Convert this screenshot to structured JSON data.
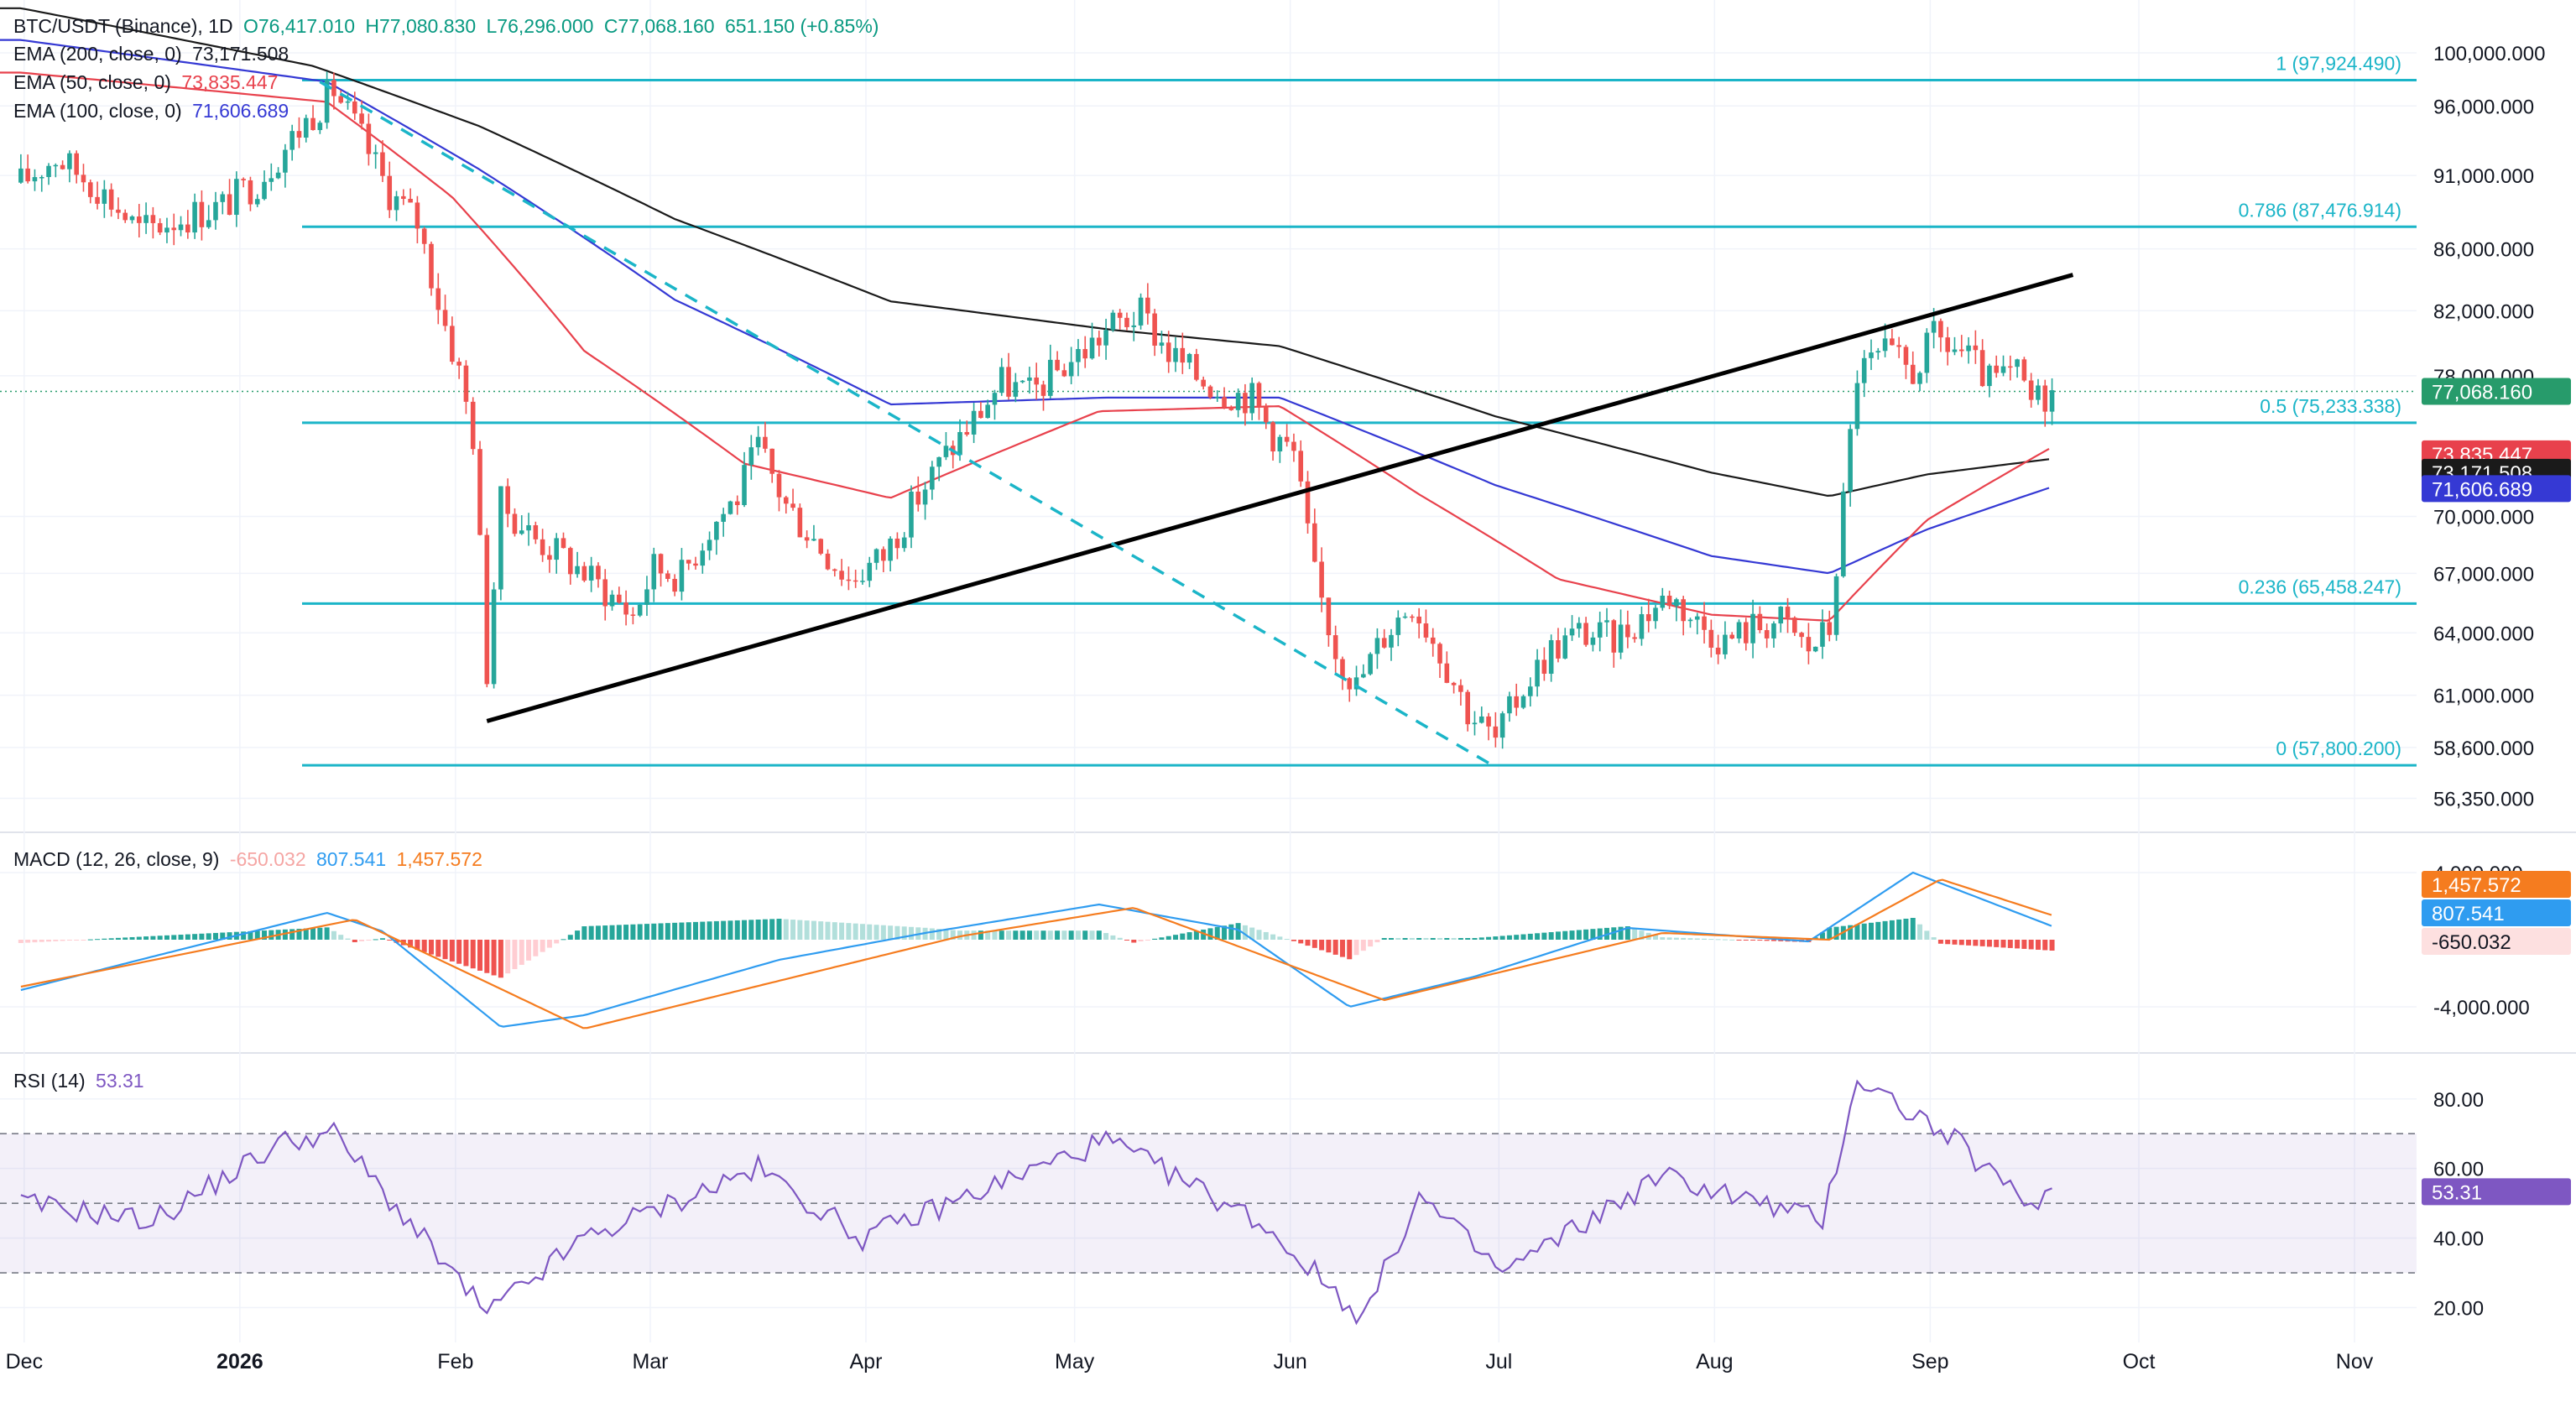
{
  "header": {
    "symbol": "BTC/USDT (Binance), 1D",
    "open": "O76,417.010",
    "high": "H77,080.830",
    "low": "L76,296.000",
    "close": "C77,068.160",
    "change": "651.150 (+0.85%)",
    "ema200_label": "EMA (200, close, 0)",
    "ema200_value": "73,171.508",
    "ema50_label": "EMA (50, close, 0)",
    "ema50_value": "73,835.447",
    "ema100_label": "EMA (100, close, 0)",
    "ema100_value": "71,606.689",
    "macd_label": "MACD (12, 26, close, 9)",
    "macd_hist": "-650.032",
    "macd_line": "807.541",
    "macd_signal": "1,457.572",
    "rsi_label": "RSI (14)",
    "rsi_value": "53.31"
  },
  "colors": {
    "up": "#26a69a",
    "down": "#ef5350",
    "ema200": "#1a1a1a",
    "ema50": "#e8414c",
    "ema100": "#3539d4",
    "fib": "#1bb5c8",
    "macd": "#2f9cf0",
    "signal": "#f57c1f",
    "rsi": "#7e57c2",
    "last_price_bg": "#279b6b"
  },
  "chart_data": [
    {
      "type": "candlestick",
      "title": "BTC/USDT (Binance), 1D",
      "x_ticks": [
        "Dec",
        "2026",
        "Feb",
        "Mar",
        "Apr",
        "May",
        "Jun",
        "Jul",
        "Aug",
        "Sep",
        "Oct",
        "Nov"
      ],
      "y_ticks": [
        "100,000.000",
        "96,000.000",
        "91,000.000",
        "86,000.000",
        "82,000.000",
        "78,000.000",
        "70,000.000",
        "67,000.000",
        "64,000.000",
        "61,000.000",
        "58,600.000",
        "56,350.000"
      ],
      "y_scale": "log",
      "ylim": [
        55500,
        101500
      ],
      "last_price": 77068.16,
      "last_price_label": "77,068.160",
      "fib_levels": [
        {
          "ratio": "1",
          "price": 97924.49,
          "label": "1 (97,924.490)"
        },
        {
          "ratio": "0.786",
          "price": 87476.914,
          "label": "0.786 (87,476.914)"
        },
        {
          "ratio": "0.5",
          "price": 75233.338,
          "label": "0.5 (75,233.338)"
        },
        {
          "ratio": "0.236",
          "price": 65458.247,
          "label": "0.236 (65,458.247)"
        },
        {
          "ratio": "0",
          "price": 57800.2,
          "label": "0 (57,800.200)"
        }
      ],
      "ema_tags": [
        {
          "name": "EMA (50, close, 0)",
          "value": 73835.447,
          "label": "73,835.447"
        },
        {
          "name": "EMA (200, close, 0)",
          "value": 73171.508,
          "label": "73,171.508"
        },
        {
          "name": "EMA (100, close, 0)",
          "value": 71606.689,
          "label": "71,606.689"
        }
      ],
      "close_path": [
        {
          "date": "2025-12-01",
          "close": 90500
        },
        {
          "date": "2025-12-06",
          "close": 92300
        },
        {
          "date": "2025-12-12",
          "close": 90200
        },
        {
          "date": "2025-12-18",
          "close": 87200
        },
        {
          "date": "2025-12-24",
          "close": 88100
        },
        {
          "date": "2025-12-30",
          "close": 88900
        },
        {
          "date": "2026-01-04",
          "close": 90600
        },
        {
          "date": "2026-01-08",
          "close": 93000
        },
        {
          "date": "2026-01-12",
          "close": 95500
        },
        {
          "date": "2026-01-15",
          "close": 97200
        },
        {
          "date": "2026-01-19",
          "close": 93600
        },
        {
          "date": "2026-01-23",
          "close": 89800
        },
        {
          "date": "2026-01-27",
          "close": 87800
        },
        {
          "date": "2026-01-30",
          "close": 82600
        },
        {
          "date": "2026-02-02",
          "close": 78200
        },
        {
          "date": "2026-02-04",
          "close": 74500
        },
        {
          "date": "2026-02-06",
          "close": 62200
        },
        {
          "date": "2026-02-08",
          "close": 70700
        },
        {
          "date": "2026-02-13",
          "close": 68800
        },
        {
          "date": "2026-02-18",
          "close": 67600
        },
        {
          "date": "2026-02-23",
          "close": 66100
        },
        {
          "date": "2026-02-27",
          "close": 64900
        },
        {
          "date": "2026-03-02",
          "close": 67300
        },
        {
          "date": "2026-03-06",
          "close": 66900
        },
        {
          "date": "2026-03-10",
          "close": 69400
        },
        {
          "date": "2026-03-14",
          "close": 71100
        },
        {
          "date": "2026-03-17",
          "close": 73800
        },
        {
          "date": "2026-03-21",
          "close": 70600
        },
        {
          "date": "2026-03-26",
          "close": 68400
        },
        {
          "date": "2026-03-30",
          "close": 66700
        },
        {
          "date": "2026-04-04",
          "close": 67900
        },
        {
          "date": "2026-04-09",
          "close": 71100
        },
        {
          "date": "2026-04-13",
          "close": 73400
        },
        {
          "date": "2026-04-17",
          "close": 75400
        },
        {
          "date": "2026-04-21",
          "close": 77600
        },
        {
          "date": "2026-04-25",
          "close": 76900
        },
        {
          "date": "2026-04-29",
          "close": 78300
        },
        {
          "date": "2026-05-03",
          "close": 79600
        },
        {
          "date": "2026-05-07",
          "close": 81100
        },
        {
          "date": "2026-05-11",
          "close": 81800
        },
        {
          "date": "2026-05-15",
          "close": 79400
        },
        {
          "date": "2026-05-19",
          "close": 78000
        },
        {
          "date": "2026-05-23",
          "close": 77100
        },
        {
          "date": "2026-05-27",
          "close": 76700
        },
        {
          "date": "2026-05-30",
          "close": 74600
        },
        {
          "date": "2026-06-02",
          "close": 73400
        },
        {
          "date": "2026-06-05",
          "close": 66800
        },
        {
          "date": "2026-06-08",
          "close": 63200
        },
        {
          "date": "2026-06-11",
          "close": 61400
        },
        {
          "date": "2026-06-15",
          "close": 63900
        },
        {
          "date": "2026-06-19",
          "close": 65600
        },
        {
          "date": "2026-06-23",
          "close": 63100
        },
        {
          "date": "2026-06-27",
          "close": 60300
        },
        {
          "date": "2026-07-01",
          "close": 58900
        },
        {
          "date": "2026-07-05",
          "close": 61400
        },
        {
          "date": "2026-07-09",
          "close": 63200
        },
        {
          "date": "2026-07-13",
          "close": 64000
        },
        {
          "date": "2026-07-18",
          "close": 63700
        },
        {
          "date": "2026-07-22",
          "close": 64800
        },
        {
          "date": "2026-07-26",
          "close": 65900
        },
        {
          "date": "2026-07-30",
          "close": 64500
        },
        {
          "date": "2026-08-03",
          "close": 63600
        },
        {
          "date": "2026-08-07",
          "close": 64300
        },
        {
          "date": "2026-08-11",
          "close": 64600
        },
        {
          "date": "2026-08-15",
          "close": 63200
        },
        {
          "date": "2026-08-18",
          "close": 64200
        },
        {
          "date": "2026-08-20",
          "close": 70700
        },
        {
          "date": "2026-08-22",
          "close": 78200
        },
        {
          "date": "2026-08-26",
          "close": 79300
        },
        {
          "date": "2026-08-30",
          "close": 78200
        },
        {
          "date": "2026-09-02",
          "close": 80300
        },
        {
          "date": "2026-09-06",
          "close": 79400
        },
        {
          "date": "2026-09-10",
          "close": 77600
        },
        {
          "date": "2026-09-14",
          "close": 78100
        },
        {
          "date": "2026-09-16",
          "close": 76500
        },
        {
          "date": "2026-09-19",
          "close": 77068
        }
      ],
      "ema200": [
        {
          "date": "2025-12-01",
          "value": 103500
        },
        {
          "date": "2026-01-12",
          "value": 99000
        },
        {
          "date": "2026-02-05",
          "value": 94500
        },
        {
          "date": "2026-03-05",
          "value": 88000
        },
        {
          "date": "2026-04-05",
          "value": 82600
        },
        {
          "date": "2026-05-07",
          "value": 80800
        },
        {
          "date": "2026-05-31",
          "value": 79800
        },
        {
          "date": "2026-07-01",
          "value": 75600
        },
        {
          "date": "2026-08-01",
          "value": 72400
        },
        {
          "date": "2026-08-18",
          "value": 71100
        },
        {
          "date": "2026-09-01",
          "value": 72300
        },
        {
          "date": "2026-09-19",
          "value": 73171.508
        }
      ],
      "ema50": [
        {
          "date": "2025-12-01",
          "value": 98500
        },
        {
          "date": "2026-01-14",
          "value": 96300
        },
        {
          "date": "2026-02-01",
          "value": 89500
        },
        {
          "date": "2026-02-20",
          "value": 79500
        },
        {
          "date": "2026-03-15",
          "value": 72900
        },
        {
          "date": "2026-04-05",
          "value": 71000
        },
        {
          "date": "2026-05-05",
          "value": 75900
        },
        {
          "date": "2026-05-31",
          "value": 76200
        },
        {
          "date": "2026-06-20",
          "value": 71200
        },
        {
          "date": "2026-07-10",
          "value": 66700
        },
        {
          "date": "2026-08-01",
          "value": 64900
        },
        {
          "date": "2026-08-18",
          "value": 64600
        },
        {
          "date": "2026-09-01",
          "value": 69800
        },
        {
          "date": "2026-09-19",
          "value": 73835.447
        }
      ],
      "ema100": [
        {
          "date": "2025-12-01",
          "value": 101000
        },
        {
          "date": "2026-01-14",
          "value": 97800
        },
        {
          "date": "2026-02-05",
          "value": 91400
        },
        {
          "date": "2026-03-05",
          "value": 82700
        },
        {
          "date": "2026-04-05",
          "value": 76300
        },
        {
          "date": "2026-05-06",
          "value": 76700
        },
        {
          "date": "2026-05-31",
          "value": 76700
        },
        {
          "date": "2026-07-01",
          "value": 71700
        },
        {
          "date": "2026-08-01",
          "value": 67900
        },
        {
          "date": "2026-08-18",
          "value": 67000
        },
        {
          "date": "2026-09-01",
          "value": 69300
        },
        {
          "date": "2026-09-19",
          "value": 71606.689
        }
      ],
      "trendlines": [
        {
          "style": "solid",
          "from": {
            "date": "2026-02-06",
            "price": 59800
          },
          "to": {
            "date": "2026-09-22",
            "price": 84300
          }
        },
        {
          "style": "dashed",
          "from": {
            "date": "2026-01-13",
            "price": 97800
          },
          "to": {
            "date": "2026-06-30",
            "price": 57900
          }
        }
      ]
    },
    {
      "type": "line",
      "title": "MACD (12, 26, close, 9)",
      "y_ticks": [
        "4,000.000",
        "-4,000.000"
      ],
      "ylim": [
        -6500,
        6000
      ],
      "tags": [
        {
          "name": "signal",
          "value": 1457.572,
          "label": "1,457.572"
        },
        {
          "name": "macd",
          "value": 807.541,
          "label": "807.541"
        },
        {
          "name": "histogram",
          "value": -650.032,
          "label": "-650.032"
        }
      ],
      "macd": [
        {
          "date": "2025-12-01",
          "value": -3000
        },
        {
          "date": "2025-12-20",
          "value": -1000
        },
        {
          "date": "2026-01-14",
          "value": 1600
        },
        {
          "date": "2026-01-22",
          "value": 500
        },
        {
          "date": "2026-02-08",
          "value": -5200
        },
        {
          "date": "2026-02-20",
          "value": -4500
        },
        {
          "date": "2026-03-20",
          "value": -1200
        },
        {
          "date": "2026-04-10",
          "value": 400
        },
        {
          "date": "2026-05-05",
          "value": 2100
        },
        {
          "date": "2026-05-25",
          "value": 600
        },
        {
          "date": "2026-06-10",
          "value": -4000
        },
        {
          "date": "2026-06-28",
          "value": -2200
        },
        {
          "date": "2026-07-20",
          "value": 700
        },
        {
          "date": "2026-08-15",
          "value": -100
        },
        {
          "date": "2026-08-30",
          "value": 4000
        },
        {
          "date": "2026-09-19",
          "value": 807.541
        }
      ],
      "signal": [
        {
          "date": "2025-12-01",
          "value": -2800
        },
        {
          "date": "2026-01-18",
          "value": 1200
        },
        {
          "date": "2026-02-20",
          "value": -5300
        },
        {
          "date": "2026-04-15",
          "value": 200
        },
        {
          "date": "2026-05-10",
          "value": 1900
        },
        {
          "date": "2026-06-15",
          "value": -3600
        },
        {
          "date": "2026-07-25",
          "value": 400
        },
        {
          "date": "2026-08-18",
          "value": 0
        },
        {
          "date": "2026-09-03",
          "value": 3600
        },
        {
          "date": "2026-09-19",
          "value": 1457.572
        }
      ]
    },
    {
      "type": "line",
      "title": "RSI (14)",
      "y_ticks": [
        "80.00",
        "60.00",
        "40.00",
        "20.00"
      ],
      "bands": [
        70,
        50,
        30
      ],
      "ylim": [
        10,
        92
      ],
      "last_value": 53.31,
      "rsi": [
        {
          "date": "2025-12-01",
          "value": 50
        },
        {
          "date": "2025-12-20",
          "value": 45
        },
        {
          "date": "2026-01-08",
          "value": 68
        },
        {
          "date": "2026-01-15",
          "value": 70
        },
        {
          "date": "2026-02-06",
          "value": 18
        },
        {
          "date": "2026-02-20",
          "value": 40
        },
        {
          "date": "2026-03-17",
          "value": 60
        },
        {
          "date": "2026-04-01",
          "value": 40
        },
        {
          "date": "2026-05-06",
          "value": 68
        },
        {
          "date": "2026-05-28",
          "value": 45
        },
        {
          "date": "2026-06-12",
          "value": 17
        },
        {
          "date": "2026-06-20",
          "value": 52
        },
        {
          "date": "2026-07-02",
          "value": 30
        },
        {
          "date": "2026-07-25",
          "value": 58
        },
        {
          "date": "2026-08-17",
          "value": 45
        },
        {
          "date": "2026-08-22",
          "value": 86
        },
        {
          "date": "2026-09-05",
          "value": 68
        },
        {
          "date": "2026-09-15",
          "value": 50
        },
        {
          "date": "2026-09-19",
          "value": 53.31
        }
      ]
    }
  ]
}
